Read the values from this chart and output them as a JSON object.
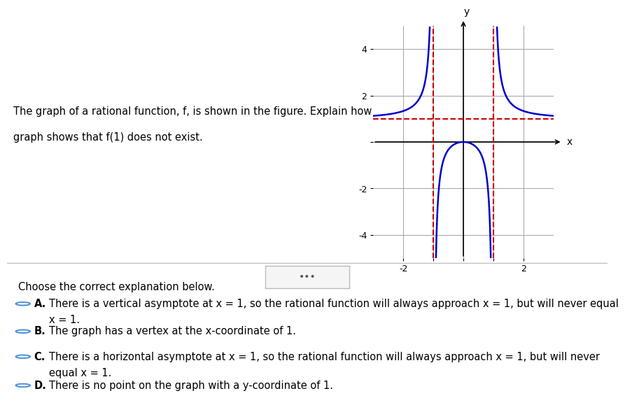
{
  "question_text_line1": "The graph of a rational function, f, is shown in the figure. Explain how the",
  "question_text_line2": "graph shows that f(1) does not exist.",
  "graph_xlim": [
    -3,
    3
  ],
  "graph_ylim": [
    -5,
    5
  ],
  "vert_asymptotes": [
    -1,
    1
  ],
  "horiz_asymptote": 1,
  "curve_color": "#0000cc",
  "asymptote_color": "#cc0000",
  "grid_color": "#aaaaaa",
  "background_color": "#ffffff",
  "axis_color": "#000000",
  "xtick_vals": [
    -2,
    -1,
    0,
    1,
    2
  ],
  "xtick_labels": [
    "-2",
    "",
    "",
    "",
    "2"
  ],
  "ytick_vals": [
    -4,
    -2,
    0,
    2,
    4
  ],
  "ytick_labels": [
    "-4",
    "-2",
    "",
    "2",
    "4"
  ],
  "choices": [
    [
      "A.",
      "There is a vertical asymptote at x = 1, so the rational function will always approach x = 1, but will never equal\nx = 1."
    ],
    [
      "B.",
      "The graph has a vertex at the x-coordinate of 1."
    ],
    [
      "C.",
      "There is a horizontal asymptote at x = 1, so the rational function will always approach x = 1, but will never\nequal x = 1."
    ],
    [
      "D.",
      "There is no point on the graph with a y-coordinate of 1."
    ]
  ],
  "choose_text": "Choose the correct explanation below."
}
